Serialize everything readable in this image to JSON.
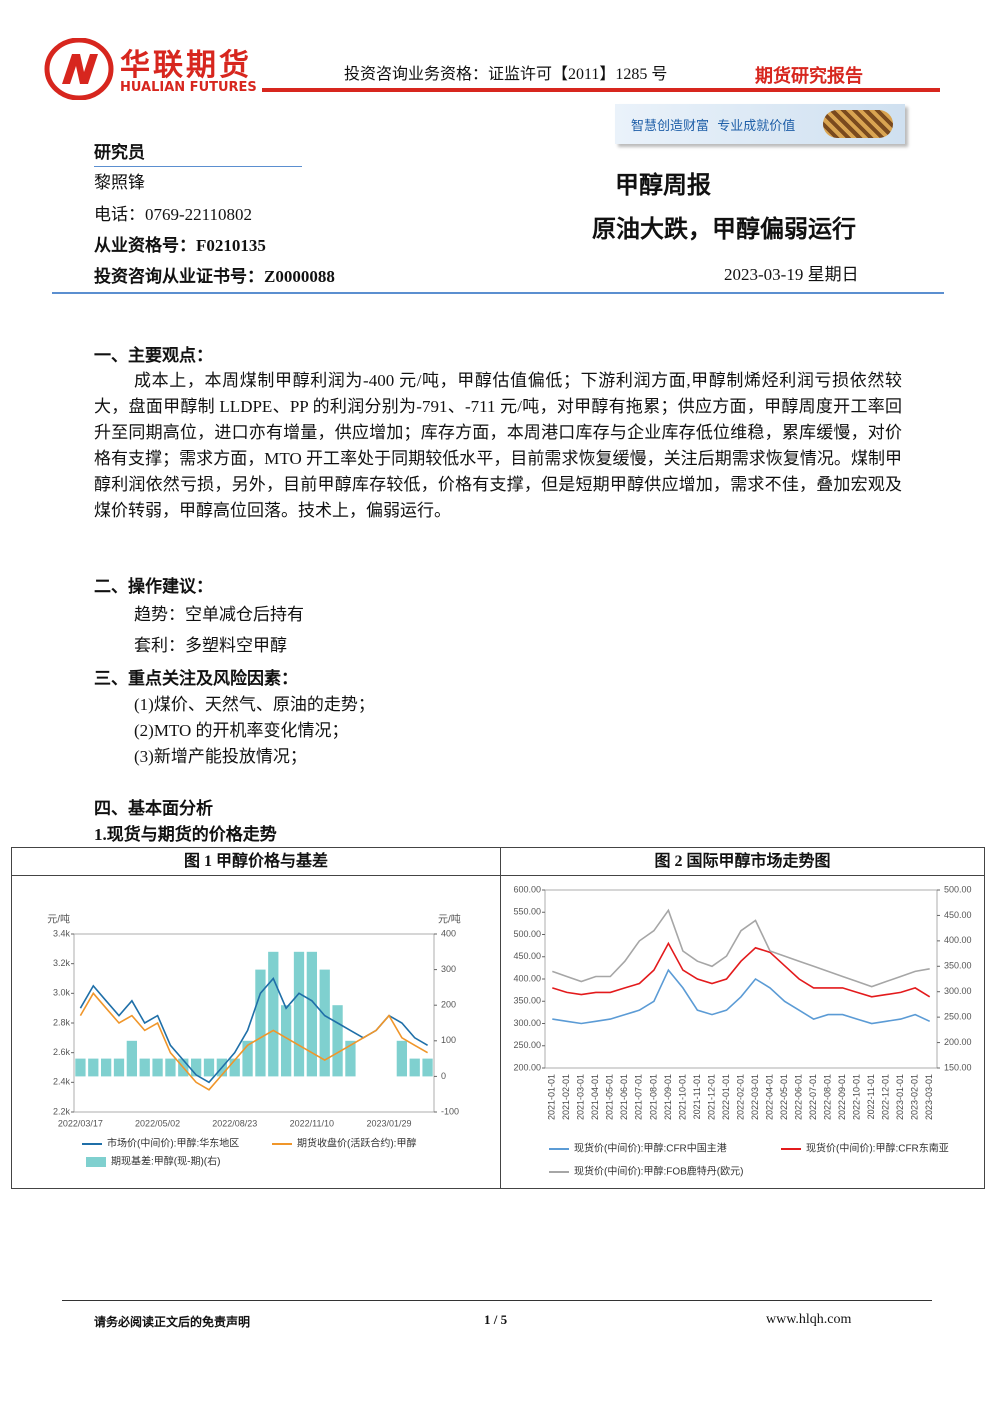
{
  "header": {
    "company_cn": "华联期货",
    "company_en": "HUALIAN FUTURES",
    "license": "投资咨询业务资格：证监许可【2011】1285 号",
    "report_type": "期货研究报告",
    "slogan": "智慧创造财富  专业成就价值"
  },
  "researcher": {
    "heading": "研究员",
    "name": "黎照锋",
    "phone": "电话：0769-22110802",
    "qualification": "从业资格号：F0210135",
    "advisory_cert": "投资咨询从业证书号：Z0000088"
  },
  "report": {
    "series": "甲醇周报",
    "title": "原油大跌，甲醇偏弱运行",
    "date": "2023-03-19 星期日"
  },
  "sections": [
    {
      "heading": "一、主要观点：",
      "paragraphs": [
        "成本上，本周煤制甲醇利润为-400 元/吨，甲醇估值偏低；下游利润方面,甲醇制烯烃利润亏损依然较大，盘面甲醇制 LLDPE、PP 的利润分别为-791、-711 元/吨，对甲醇有拖累；供应方面，甲醇周度开工率回升至同期高位，进口亦有增量，供应增加；库存方面，本周港口库存与企业库存低位维稳，累库缓慢，对价格有支撑；需求方面，MTO 开工率处于同期较低水平，目前需求恢复缓慢，关注后期需求恢复情况。煤制甲醇利润依然亏损，另外，目前甲醇库存较低，价格有支撑，但是短期甲醇供应增加，需求不佳，叠加宏观及煤价转弱，甲醇高位回落。技术上，偏弱运行。"
      ]
    },
    {
      "heading": "二、操作建议：",
      "items": [
        "趋势：空单减仓后持有",
        "套利：多塑料空甲醇"
      ]
    },
    {
      "heading": "三、重点关注及风险因素：",
      "items": [
        "(1)煤价、天然气、原油的走势；",
        "(2)MTO 的开机率变化情况；",
        "(3)新增产能投放情况；"
      ]
    },
    {
      "heading": "四、基本面分析",
      "subheading": "1.现货与期货的价格走势"
    }
  ],
  "chart_data": [
    {
      "type": "combo",
      "title": "图 1  甲醇价格与基差",
      "ylabel": "元/吨",
      "y2label": "元/吨",
      "categories": [
        "2022/03/17",
        null,
        null,
        null,
        null,
        null,
        "2022/05/02",
        null,
        null,
        null,
        null,
        null,
        "2022/08/23",
        null,
        null,
        null,
        null,
        null,
        "2022/11/10",
        null,
        null,
        null,
        null,
        null,
        "2023/01/29",
        null,
        null,
        null
      ],
      "ylim": [
        2200,
        3400
      ],
      "yticks": [
        {
          "value": 2200,
          "label": "2.2k"
        },
        {
          "value": 2400,
          "label": "2.4k"
        },
        {
          "value": 2600,
          "label": "2.6k"
        },
        {
          "value": 2800,
          "label": "2.8k"
        },
        {
          "value": 3000,
          "label": "3.0k"
        },
        {
          "value": 3200,
          "label": "3.2k"
        },
        {
          "value": 3400,
          "label": "3.4k"
        }
      ],
      "y2lim": [
        -100,
        400
      ],
      "y2ticks": [
        -100,
        0,
        100,
        200,
        300,
        400
      ],
      "series": [
        {
          "name": "期现基差:甲醇(现-期)(右)",
          "type": "bar",
          "axis": "y2",
          "color": "#7fd0cf",
          "values": [
            50,
            50,
            50,
            50,
            100,
            50,
            50,
            50,
            50,
            50,
            50,
            50,
            50,
            100,
            300,
            350,
            200,
            350,
            350,
            300,
            200,
            100,
            0,
            0,
            0,
            100,
            50,
            50
          ]
        },
        {
          "name": "市场价(中间价):甲醇:华东地区",
          "type": "line",
          "color": "#1f6fa8",
          "values": [
            2900,
            3050,
            2950,
            2850,
            2950,
            2800,
            2850,
            2650,
            2550,
            2450,
            2400,
            2500,
            2600,
            2750,
            3000,
            3100,
            2900,
            3000,
            2950,
            2850,
            2800,
            2750,
            2700,
            2750,
            2850,
            2800,
            2700,
            2650
          ]
        },
        {
          "name": "期货收盘价(活跃合约):甲醇",
          "type": "line",
          "color": "#f0962a",
          "values": [
            2850,
            3000,
            2900,
            2800,
            2850,
            2750,
            2800,
            2600,
            2500,
            2400,
            2350,
            2450,
            2550,
            2650,
            2700,
            2750,
            2700,
            2650,
            2600,
            2550,
            2600,
            2650,
            2700,
            2750,
            2850,
            2700,
            2650,
            2600
          ]
        }
      ]
    },
    {
      "type": "line",
      "title": "图 2  国际甲醇市场走势图",
      "categories": [
        "2021-01-01",
        "2021-02-01",
        "2021-03-01",
        "2021-04-01",
        "2021-05-01",
        "2021-06-01",
        "2021-07-01",
        "2021-08-01",
        "2021-09-01",
        "2021-10-01",
        "2021-11-01",
        "2021-12-01",
        "2022-01-01",
        "2022-02-01",
        "2022-03-01",
        "2022-04-01",
        "2022-05-01",
        "2022-06-01",
        "2022-07-01",
        "2022-08-01",
        "2022-09-01",
        "2022-10-01",
        "2022-11-01",
        "2022-12-01",
        "2023-01-01",
        "2023-02-01",
        "2023-03-01"
      ],
      "ylim": [
        200,
        600
      ],
      "yticks": [
        {
          "value": 200,
          "label": "200.00"
        },
        {
          "value": 250,
          "label": "250.00"
        },
        {
          "value": 300,
          "label": "300.00"
        },
        {
          "value": 350,
          "label": "350.00"
        },
        {
          "value": 400,
          "label": "400.00"
        },
        {
          "value": 450,
          "label": "450.00"
        },
        {
          "value": 500,
          "label": "500.00"
        },
        {
          "value": 550,
          "label": "550.00"
        },
        {
          "value": 600,
          "label": "600.00"
        }
      ],
      "y2lim": [
        150,
        500
      ],
      "y2ticks": [
        {
          "value": 150,
          "label": "150.00"
        },
        {
          "value": 200,
          "label": "200.00"
        },
        {
          "value": 250,
          "label": "250.00"
        },
        {
          "value": 300,
          "label": "300.00"
        },
        {
          "value": 350,
          "label": "350.00"
        },
        {
          "value": 400,
          "label": "400.00"
        },
        {
          "value": 450,
          "label": "450.00"
        },
        {
          "value": 500,
          "label": "500.00"
        }
      ],
      "series": [
        {
          "name": "现货价(中间价):甲醇:CFR中国主港",
          "type": "line",
          "color": "#5b9bd5",
          "values": [
            310,
            305,
            300,
            305,
            310,
            320,
            330,
            350,
            420,
            380,
            330,
            320,
            330,
            360,
            400,
            380,
            350,
            330,
            310,
            320,
            320,
            310,
            300,
            305,
            310,
            320,
            305
          ]
        },
        {
          "name": "现货价(中间价):甲醇:CFR东南亚",
          "type": "line",
          "color": "#e31a1c",
          "values": [
            380,
            370,
            365,
            370,
            370,
            380,
            390,
            420,
            480,
            420,
            400,
            390,
            400,
            440,
            470,
            460,
            430,
            400,
            380,
            380,
            380,
            370,
            360,
            365,
            370,
            380,
            360
          ]
        },
        {
          "name": "现货价(中间价):甲醇:FOB鹿特丹(欧元)",
          "type": "line",
          "axis": "y2",
          "color": "#a6a6a6",
          "values": [
            340,
            330,
            320,
            330,
            330,
            360,
            400,
            420,
            460,
            380,
            360,
            350,
            370,
            420,
            440,
            380,
            370,
            360,
            350,
            340,
            330,
            320,
            310,
            320,
            330,
            340,
            345
          ]
        }
      ]
    }
  ],
  "footer": {
    "disclaimer": "请务必阅读正文后的免责声明",
    "page": "1 / 5",
    "website": "www.hlqh.com"
  }
}
